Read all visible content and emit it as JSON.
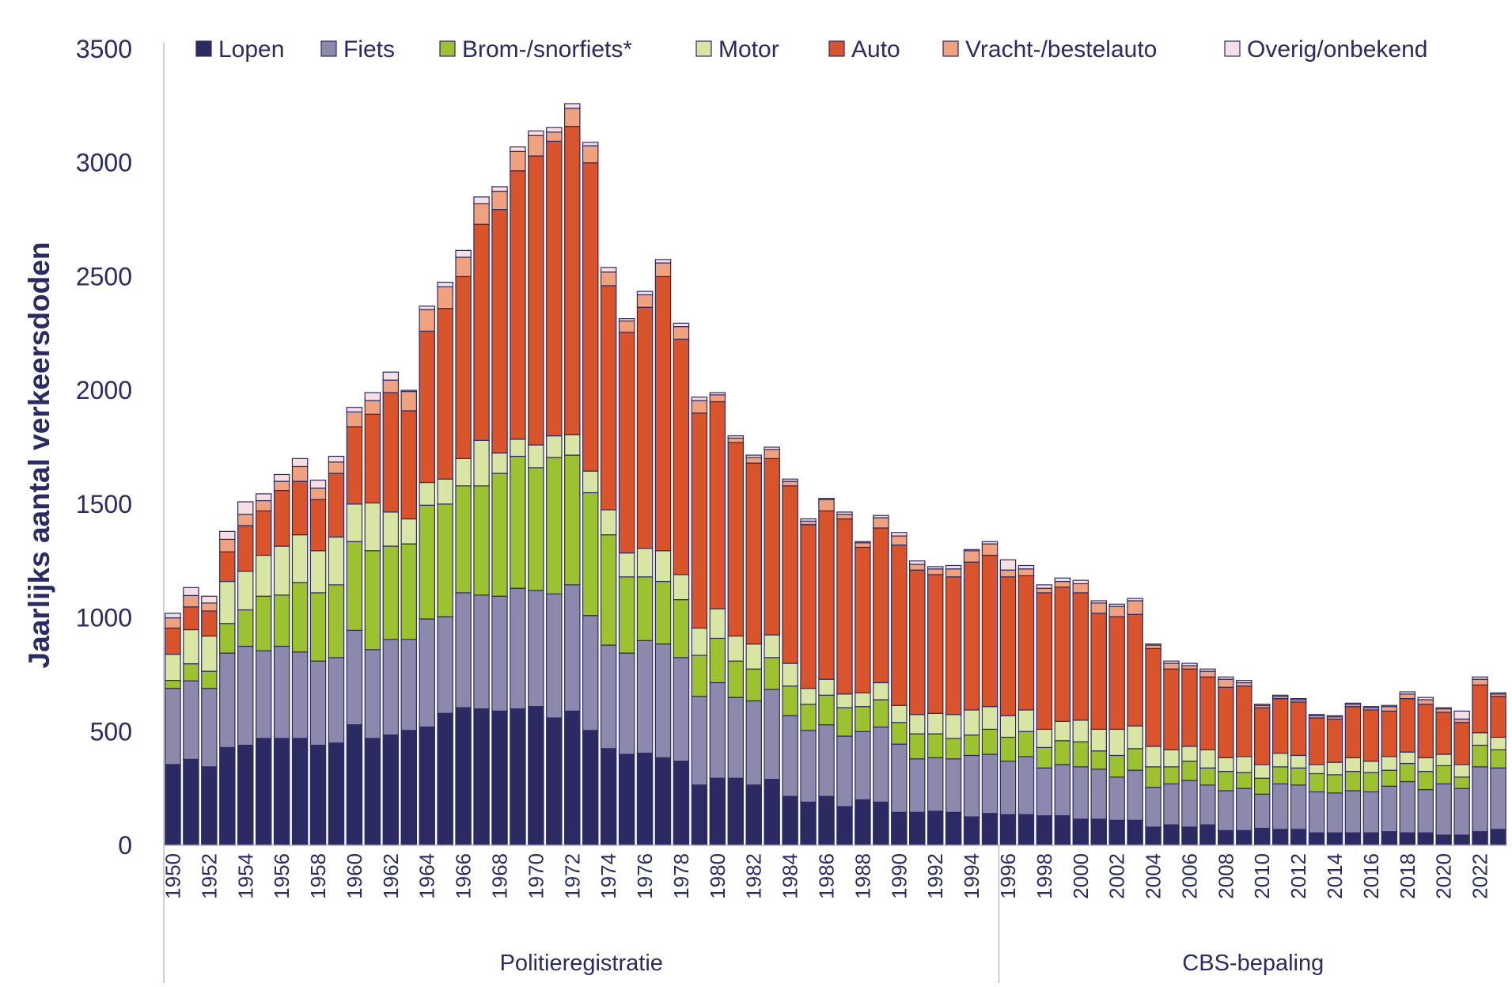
{
  "chart_data": {
    "type": "bar",
    "stacked": true,
    "title": "",
    "xlabel": "",
    "ylabel": "Jaarlijks aantal verkeersdoden",
    "ylim": [
      0,
      3500
    ],
    "yticks": [
      0,
      500,
      1000,
      1500,
      2000,
      2500,
      3000,
      3500
    ],
    "grid": false,
    "legend_position": "top",
    "x_tick_step_years": 2,
    "categories": [
      1950,
      1951,
      1952,
      1953,
      1954,
      1955,
      1956,
      1957,
      1958,
      1959,
      1960,
      1961,
      1962,
      1963,
      1964,
      1965,
      1966,
      1967,
      1968,
      1969,
      1970,
      1971,
      1972,
      1973,
      1974,
      1975,
      1976,
      1977,
      1978,
      1979,
      1980,
      1981,
      1982,
      1983,
      1984,
      1985,
      1986,
      1987,
      1988,
      1989,
      1990,
      1991,
      1992,
      1993,
      1994,
      1995,
      1996,
      1997,
      1998,
      1999,
      2000,
      2001,
      2002,
      2003,
      2004,
      2005,
      2006,
      2007,
      2008,
      2009,
      2010,
      2011,
      2012,
      2013,
      2014,
      2015,
      2016,
      2017,
      2018,
      2019,
      2020,
      2021,
      2022,
      2023
    ],
    "periods": [
      {
        "label": "Politieregistratie",
        "from": 1950,
        "to": 1995
      },
      {
        "label": "CBS-bepaling",
        "from": 1996,
        "to": 2023
      }
    ],
    "series": [
      {
        "name": "Lopen",
        "color": "#2b2a62",
        "values": [
          355,
          378,
          345,
          430,
          440,
          470,
          470,
          470,
          440,
          450,
          530,
          470,
          485,
          505,
          520,
          580,
          605,
          600,
          590,
          600,
          610,
          560,
          590,
          505,
          425,
          400,
          405,
          385,
          370,
          265,
          295,
          295,
          265,
          290,
          215,
          190,
          215,
          170,
          200,
          190,
          145,
          145,
          150,
          145,
          125,
          140,
          135,
          135,
          130,
          130,
          115,
          115,
          110,
          110,
          80,
          90,
          80,
          90,
          65,
          65,
          75,
          70,
          70,
          55,
          55,
          55,
          55,
          60,
          55,
          55,
          45,
          45,
          60,
          70
        ]
      },
      {
        "name": "Fiets",
        "color": "#8c89ad",
        "values": [
          335,
          345,
          345,
          415,
          435,
          385,
          405,
          380,
          370,
          375,
          415,
          390,
          420,
          400,
          475,
          425,
          505,
          500,
          505,
          530,
          510,
          545,
          555,
          505,
          455,
          445,
          495,
          500,
          455,
          390,
          420,
          355,
          370,
          395,
          355,
          315,
          315,
          310,
          300,
          330,
          300,
          235,
          235,
          235,
          270,
          260,
          235,
          255,
          210,
          225,
          230,
          220,
          190,
          220,
          175,
          180,
          205,
          175,
          175,
          185,
          150,
          200,
          195,
          180,
          175,
          185,
          180,
          200,
          225,
          190,
          225,
          205,
          285,
          270
        ]
      },
      {
        "name": "Brom-/snorfiets*",
        "color": "#9dc230",
        "values": [
          35,
          75,
          75,
          130,
          160,
          240,
          225,
          305,
          300,
          320,
          390,
          435,
          410,
          420,
          500,
          495,
          470,
          480,
          540,
          580,
          540,
          600,
          570,
          540,
          485,
          335,
          280,
          275,
          255,
          180,
          195,
          160,
          140,
          140,
          130,
          115,
          130,
          125,
          110,
          120,
          95,
          110,
          105,
          90,
          90,
          110,
          105,
          110,
          90,
          105,
          110,
          80,
          95,
          95,
          90,
          75,
          85,
          75,
          85,
          70,
          70,
          75,
          75,
          80,
          80,
          85,
          85,
          70,
          80,
          80,
          80,
          50,
          95,
          80
        ]
      },
      {
        "name": "Motor",
        "color": "#d9e5a3",
        "values": [
          115,
          150,
          155,
          185,
          170,
          180,
          215,
          210,
          185,
          210,
          165,
          210,
          150,
          110,
          100,
          110,
          120,
          200,
          90,
          75,
          100,
          95,
          90,
          95,
          110,
          105,
          125,
          135,
          110,
          120,
          130,
          110,
          110,
          100,
          100,
          70,
          70,
          60,
          60,
          75,
          75,
          85,
          90,
          105,
          110,
          100,
          95,
          95,
          80,
          85,
          95,
          95,
          115,
          100,
          90,
          75,
          65,
          80,
          60,
          70,
          60,
          60,
          55,
          40,
          55,
          60,
          50,
          60,
          50,
          60,
          50,
          55,
          55,
          55
        ]
      },
      {
        "name": "Auto",
        "color": "#d9532b",
        "values": [
          115,
          100,
          110,
          130,
          200,
          195,
          245,
          235,
          225,
          280,
          340,
          390,
          525,
          475,
          665,
          750,
          800,
          950,
          1070,
          1180,
          1270,
          1295,
          1355,
          1355,
          985,
          970,
          1060,
          1205,
          1035,
          945,
          910,
          850,
          795,
          775,
          780,
          720,
          740,
          770,
          640,
          680,
          705,
          635,
          610,
          605,
          650,
          665,
          610,
          590,
          600,
          590,
          560,
          510,
          495,
          490,
          430,
          355,
          340,
          320,
          310,
          310,
          250,
          240,
          235,
          205,
          190,
          225,
          225,
          200,
          235,
          235,
          185,
          185,
          210,
          180
        ]
      },
      {
        "name": "Vracht-/bestelauto",
        "color": "#f0a17e",
        "values": [
          45,
          50,
          35,
          55,
          50,
          45,
          40,
          65,
          50,
          50,
          65,
          60,
          55,
          85,
          95,
          95,
          85,
          90,
          80,
          85,
          90,
          40,
          80,
          75,
          60,
          50,
          55,
          60,
          55,
          55,
          30,
          20,
          25,
          40,
          20,
          15,
          50,
          20,
          20,
          45,
          40,
          25,
          25,
          35,
          50,
          50,
          30,
          30,
          20,
          25,
          40,
          45,
          45,
          60,
          15,
          25,
          15,
          25,
          35,
          15,
          10,
          10,
          10,
          10,
          10,
          10,
          10,
          20,
          20,
          20,
          15,
          15,
          25,
          10
        ]
      },
      {
        "name": "Overig/onbekend",
        "color": "#f6dfe2",
        "values": [
          20,
          35,
          30,
          35,
          55,
          30,
          30,
          35,
          35,
          25,
          20,
          35,
          35,
          5,
          15,
          20,
          30,
          30,
          20,
          20,
          20,
          20,
          20,
          15,
          20,
          10,
          15,
          15,
          15,
          15,
          10,
          10,
          10,
          10,
          10,
          10,
          5,
          10,
          5,
          10,
          15,
          15,
          10,
          15,
          5,
          10,
          45,
          15,
          15,
          15,
          15,
          10,
          10,
          10,
          5,
          10,
          10,
          10,
          10,
          10,
          5,
          5,
          5,
          5,
          5,
          5,
          5,
          5,
          10,
          10,
          5,
          35,
          10,
          5
        ]
      }
    ]
  }
}
